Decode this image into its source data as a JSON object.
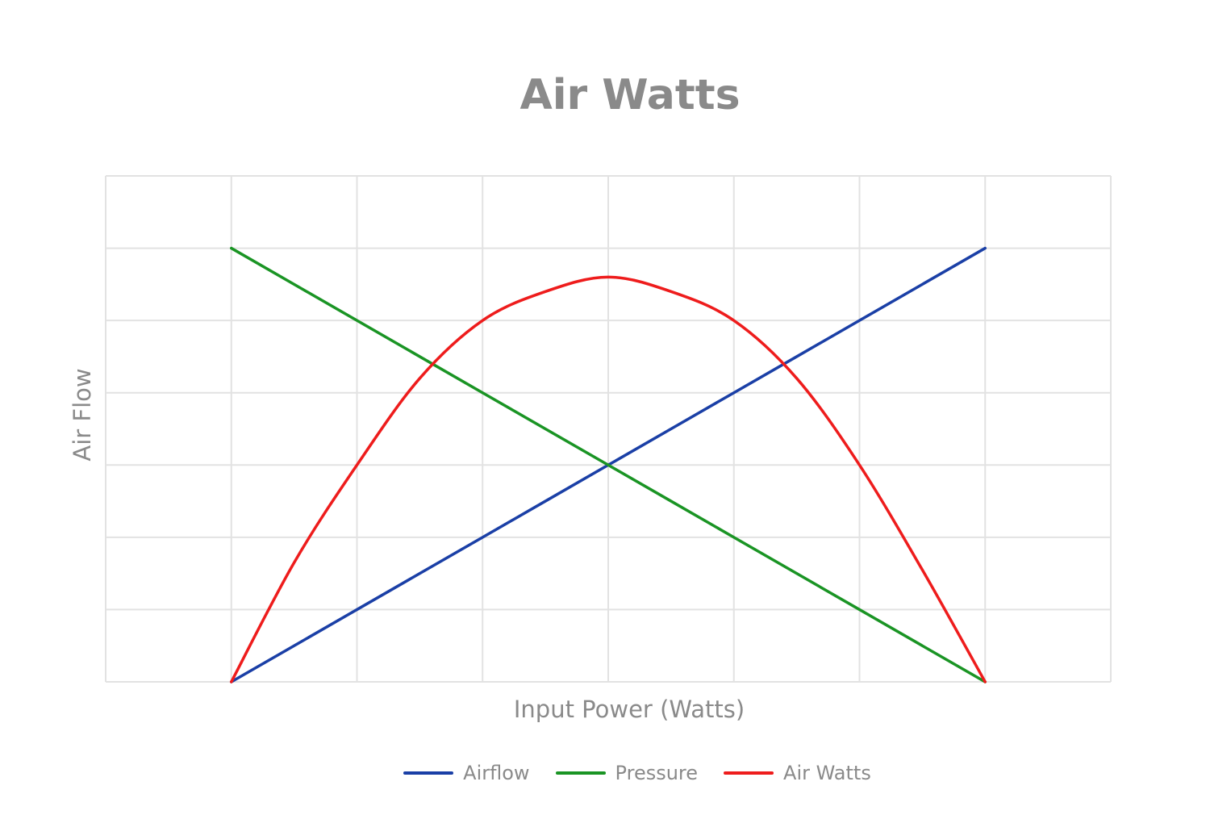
{
  "chart_data": {
    "type": "line",
    "title": "Air Watts",
    "xlabel": "Input Power (Watts)",
    "ylabel": "Air Flow",
    "xlim": [
      -1,
      7
    ],
    "ylim": [
      0,
      7
    ],
    "grid": true,
    "legend_position": "bottom",
    "x": [
      0,
      0.5,
      1,
      1.5,
      2,
      2.5,
      3,
      3.5,
      4,
      4.5,
      5,
      5.5,
      6
    ],
    "series": [
      {
        "name": "Airflow",
        "color": "#1a3fa6",
        "values": [
          0,
          0.5,
          1,
          1.5,
          2,
          2.5,
          3,
          3.5,
          4,
          4.5,
          5,
          5.5,
          6
        ]
      },
      {
        "name": "Pressure",
        "color": "#1a9424",
        "values": [
          6,
          5.5,
          5,
          4.5,
          4,
          3.5,
          3,
          2.5,
          2,
          1.5,
          1,
          0.5,
          0
        ]
      },
      {
        "name": "Air Watts",
        "color": "#ee1c1c",
        "values": [
          0,
          1.65,
          3.0,
          4.2,
          5.0,
          5.4,
          5.6,
          5.4,
          5.0,
          4.2,
          3.0,
          1.55,
          0
        ]
      }
    ]
  }
}
